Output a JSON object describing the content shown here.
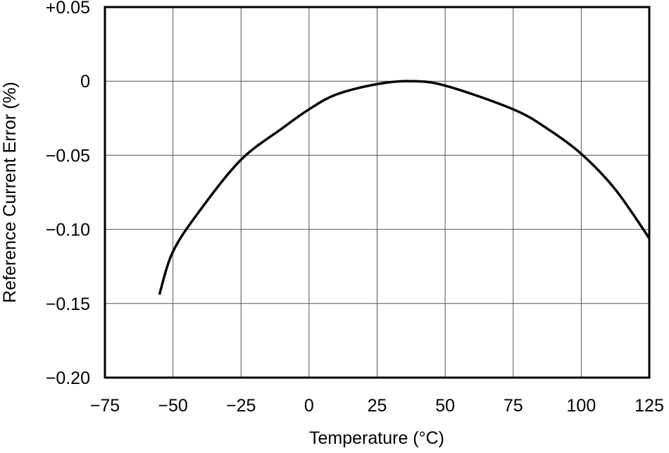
{
  "chart_data": {
    "type": "line",
    "title": "",
    "xlabel": "Temperature (°C)",
    "ylabel": "Reference Current Error (%)",
    "xlim": [
      -75,
      125
    ],
    "ylim": [
      -0.2,
      0.05
    ],
    "x_ticks": [
      -75,
      -50,
      -25,
      0,
      25,
      50,
      75,
      100,
      125
    ],
    "x_tick_labels": [
      "−75",
      "−50",
      "−25",
      "0",
      "25",
      "50",
      "75",
      "100",
      "125"
    ],
    "y_ticks": [
      0.05,
      0,
      -0.05,
      -0.1,
      -0.15,
      -0.2
    ],
    "y_tick_labels": [
      "+0.05",
      "0",
      "−0.05",
      "−0.10",
      "−0.15",
      "−0.20"
    ],
    "grid": true,
    "series": [
      {
        "color": "#000000",
        "x": [
          -55,
          -50,
          -40,
          -25,
          -10,
          0,
          10,
          25,
          37,
          50,
          75,
          87.5,
          100,
          112.5,
          125
        ],
        "y": [
          -0.144,
          -0.115,
          -0.087,
          -0.053,
          -0.032,
          -0.019,
          -0.009,
          -0.002,
          0.0,
          -0.003,
          -0.019,
          -0.032,
          -0.049,
          -0.073,
          -0.106
        ]
      }
    ]
  }
}
